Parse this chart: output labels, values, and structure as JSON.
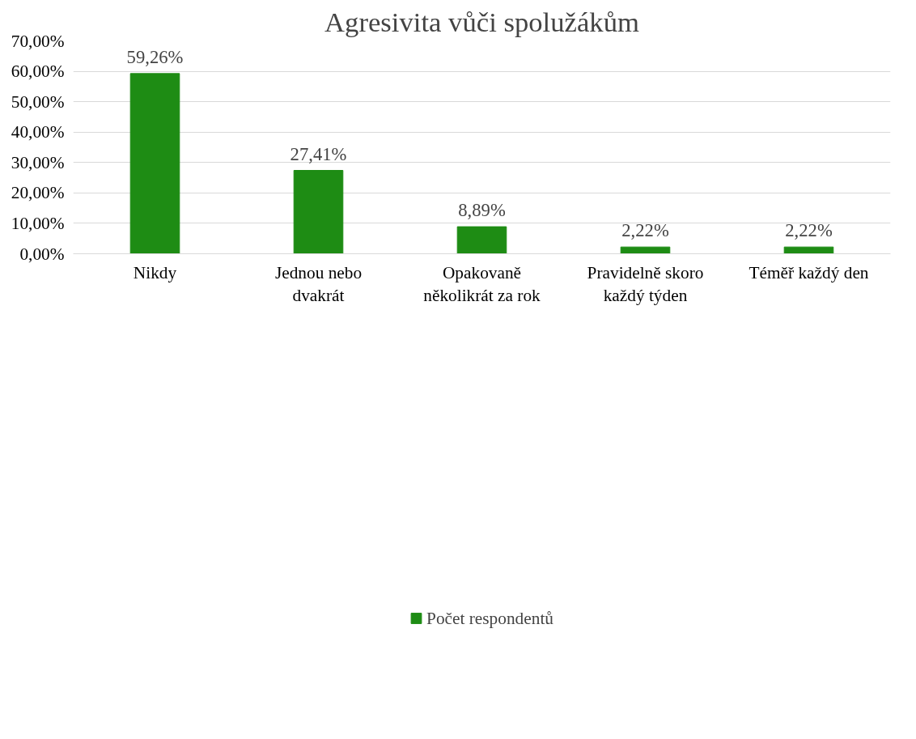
{
  "chart_data": {
    "type": "bar",
    "title": "Agresivita vůči spolužákům",
    "categories": [
      "Nikdy",
      "Jednou nebo\ndvakrát",
      "Opakovaně\nněkolikrát za rok",
      "Pravidelně skoro\nkaždý týden",
      "Téměř každý den"
    ],
    "series": [
      {
        "name": "Počet respondentů",
        "color": "#1e8c14",
        "values": [
          59.26,
          27.41,
          8.89,
          2.22,
          2.22
        ],
        "value_labels": [
          "59,26%",
          "27,41%",
          "8,89%",
          "2,22%",
          "2,22%"
        ]
      }
    ],
    "ylim": [
      0,
      70
    ],
    "yticks": [
      {
        "value": 0,
        "label": "0,00%"
      },
      {
        "value": 10,
        "label": "10,00%"
      },
      {
        "value": 20,
        "label": "20,00%"
      },
      {
        "value": 30,
        "label": "30,00%"
      },
      {
        "value": 40,
        "label": "40,00%"
      },
      {
        "value": 50,
        "label": "50,00%"
      },
      {
        "value": 60,
        "label": "60,00%"
      },
      {
        "value": 70,
        "label": "70,00%"
      }
    ],
    "grid": "y",
    "legend": "bottom"
  }
}
